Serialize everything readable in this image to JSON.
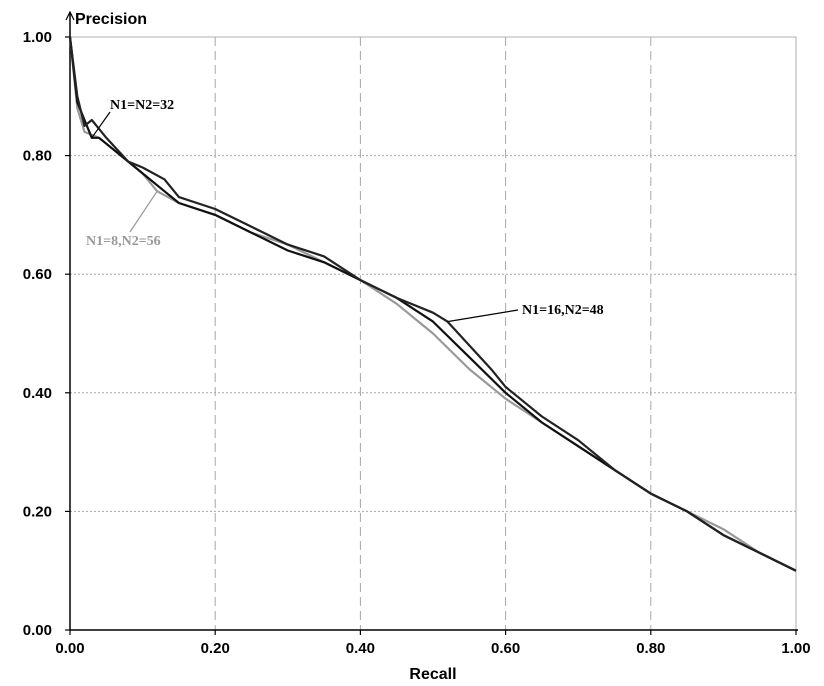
{
  "chart_data": {
    "type": "line",
    "title": "",
    "xlabel": "Recall",
    "ylabel": "Precision",
    "xlim": [
      0,
      1
    ],
    "ylim": [
      0,
      1
    ],
    "xticks": [
      "0.00",
      "0.20",
      "0.40",
      "0.60",
      "0.80",
      "1.00"
    ],
    "yticks": [
      "0.00",
      "0.20",
      "0.40",
      "0.60",
      "0.80",
      "1.00"
    ],
    "grid": true,
    "series": [
      {
        "name": "N1=N2=32",
        "color": "#111111",
        "x": [
          0.0,
          0.01,
          0.02,
          0.03,
          0.04,
          0.05,
          0.08,
          0.1,
          0.13,
          0.15,
          0.2,
          0.25,
          0.3,
          0.35,
          0.4,
          0.45,
          0.5,
          0.55,
          0.6,
          0.65,
          0.7,
          0.75,
          0.8,
          0.85,
          0.9,
          0.95,
          1.0
        ],
        "y": [
          1.0,
          0.89,
          0.86,
          0.83,
          0.83,
          0.82,
          0.79,
          0.77,
          0.74,
          0.72,
          0.7,
          0.67,
          0.64,
          0.62,
          0.59,
          0.56,
          0.52,
          0.46,
          0.4,
          0.35,
          0.31,
          0.27,
          0.23,
          0.2,
          0.16,
          0.13,
          0.1
        ]
      },
      {
        "name": "N1=16,N2=48",
        "color": "#222222",
        "x": [
          0.0,
          0.01,
          0.02,
          0.03,
          0.05,
          0.08,
          0.1,
          0.13,
          0.15,
          0.2,
          0.25,
          0.3,
          0.35,
          0.4,
          0.45,
          0.5,
          0.52,
          0.55,
          0.58,
          0.6,
          0.65,
          0.7,
          0.75,
          0.8,
          0.85,
          0.9,
          0.95,
          1.0
        ],
        "y": [
          1.0,
          0.9,
          0.85,
          0.86,
          0.83,
          0.79,
          0.78,
          0.76,
          0.73,
          0.71,
          0.68,
          0.65,
          0.63,
          0.59,
          0.56,
          0.535,
          0.52,
          0.48,
          0.44,
          0.41,
          0.36,
          0.32,
          0.27,
          0.23,
          0.2,
          0.16,
          0.13,
          0.1
        ]
      },
      {
        "name": "N1=8,N2=56",
        "color": "#999999",
        "x": [
          0.0,
          0.01,
          0.02,
          0.04,
          0.06,
          0.08,
          0.1,
          0.12,
          0.15,
          0.2,
          0.25,
          0.3,
          0.35,
          0.4,
          0.45,
          0.5,
          0.55,
          0.6,
          0.65,
          0.7,
          0.75,
          0.8,
          0.85,
          0.9,
          0.95,
          1.0
        ],
        "y": [
          1.0,
          0.88,
          0.84,
          0.83,
          0.81,
          0.79,
          0.77,
          0.74,
          0.72,
          0.7,
          0.67,
          0.65,
          0.62,
          0.59,
          0.55,
          0.5,
          0.44,
          0.39,
          0.35,
          0.31,
          0.27,
          0.23,
          0.2,
          0.17,
          0.13,
          0.1
        ]
      }
    ],
    "annotations": [
      {
        "text": "N1=N2=32",
        "series": "N1=N2=32",
        "color": "#000000"
      },
      {
        "text": "N1=16,N2=48",
        "series": "N1=16,N2=48",
        "color": "#000000"
      },
      {
        "text": "N1=8,N2=56",
        "series": "N1=8,N2=56",
        "color": "#999999"
      }
    ]
  }
}
